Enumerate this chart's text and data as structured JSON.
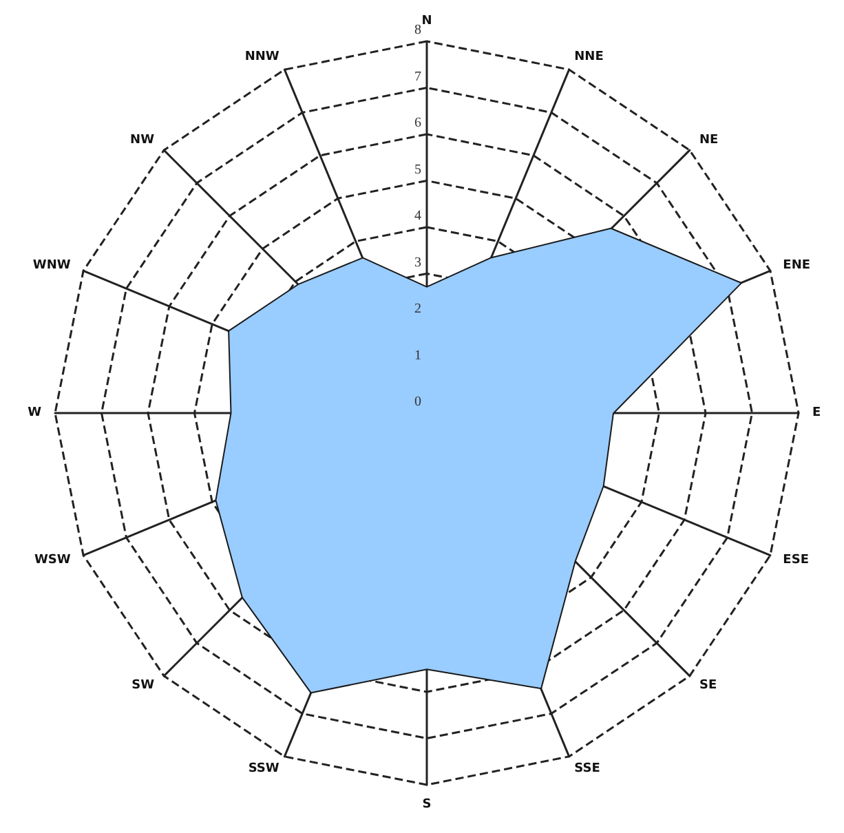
{
  "chart_data": {
    "type": "radar",
    "categories": [
      "N",
      "NNE",
      "NE",
      "ENE",
      "E",
      "ESE",
      "SE",
      "SSE",
      "S",
      "SSW",
      "SW",
      "WSW",
      "W",
      "WNW",
      "NW",
      "NNW"
    ],
    "series": [
      {
        "color": "#99ccff",
        "values": [
          2.7,
          3.6,
          5.6,
          7.3,
          4.0,
          4.1,
          4.5,
          6.4,
          5.5,
          6.5,
          5.6,
          4.9,
          4.2,
          4.6,
          3.9,
          3.6
        ]
      }
    ],
    "ylim": [
      0,
      8
    ],
    "yticks": [
      0,
      1,
      2,
      3,
      4,
      5,
      6,
      7,
      8
    ],
    "grid": true,
    "marker": "none"
  }
}
